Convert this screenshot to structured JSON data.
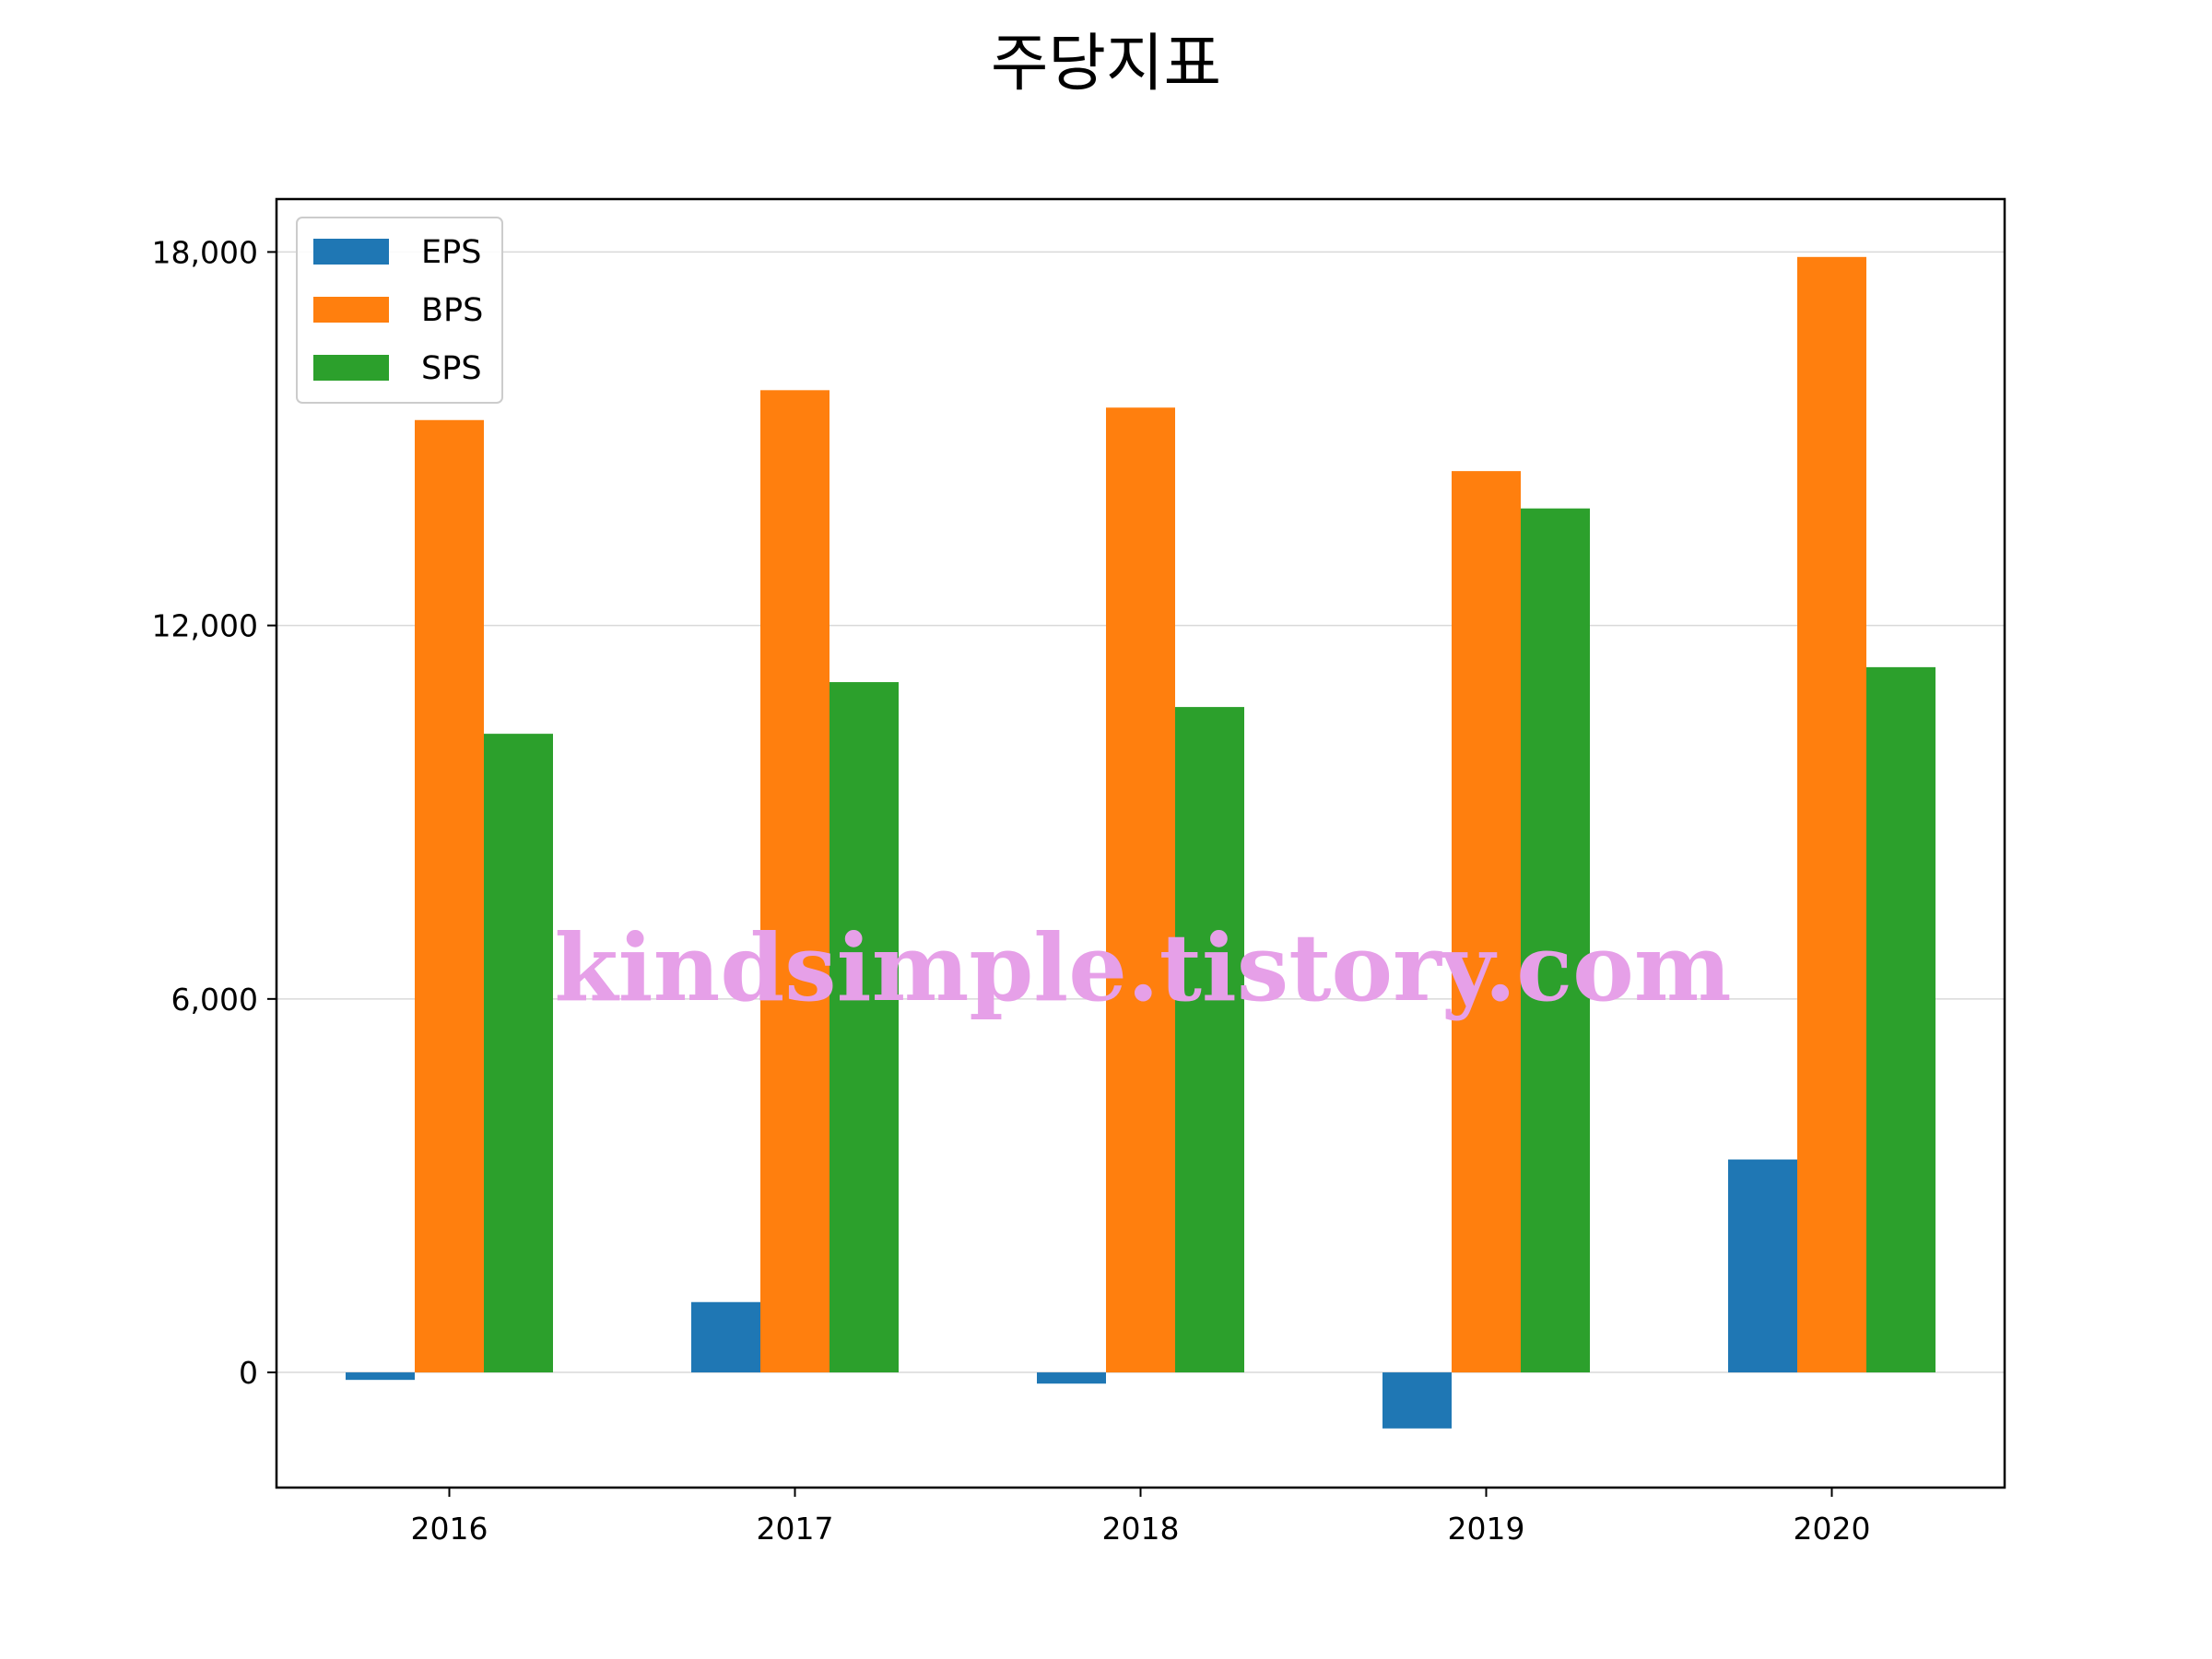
{
  "chart_data": {
    "type": "bar",
    "title": "주당지표",
    "xlabel": "",
    "ylabel": "",
    "categories": [
      "2016",
      "2017",
      "2018",
      "2019",
      "2020"
    ],
    "series": [
      {
        "name": "EPS",
        "color": "#1f77b4",
        "values": [
          -120,
          1130,
          -180,
          -900,
          3420
        ]
      },
      {
        "name": "BPS",
        "color": "#ff7f0e",
        "values": [
          15300,
          15780,
          15500,
          14480,
          17920
        ]
      },
      {
        "name": "SPS",
        "color": "#2ca02c",
        "values": [
          10260,
          11090,
          10690,
          13880,
          11330
        ]
      }
    ],
    "ylim": [
      -1850,
      18850
    ],
    "yticks": [
      0,
      6000,
      12000,
      18000
    ],
    "ytick_labels": [
      "0",
      "6,000",
      "12,000",
      "18,000"
    ],
    "grid": "y",
    "legend_position": "top-left"
  },
  "watermark": {
    "text": "kindsimple.tistory.com",
    "color": "#e6a0e8"
  }
}
